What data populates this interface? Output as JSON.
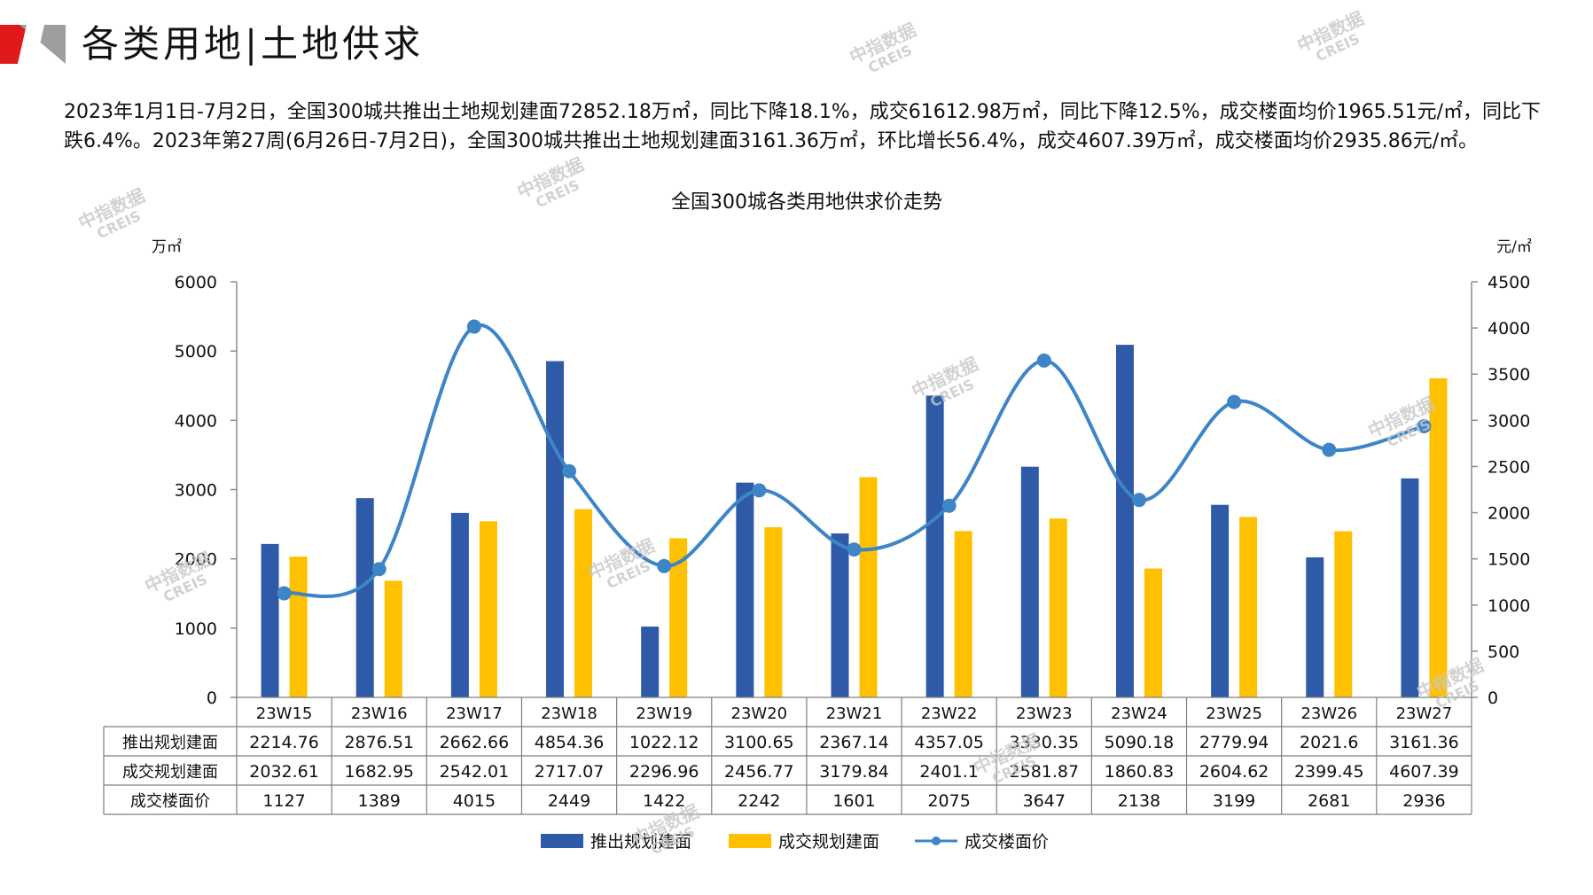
{
  "header": {
    "title": "各类用地|土地供求"
  },
  "summary": {
    "text": "2023年1月1日-7月2日，全国300城共推出土地规划建面72852.18万㎡，同比下降18.1%，成交61612.98万㎡，同比下降12.5%，成交楼面均价1965.51元/㎡，同比下跌6.4%。2023年第27周(6月26日-7月2日)，全国300城共推出土地规划建面3161.36万㎡，环比增长56.4%，成交4607.39万㎡，成交楼面均价2935.86元/㎡。"
  },
  "watermark": {
    "cn": "中指数据",
    "en": "CREIS"
  },
  "colors": {
    "supply": "#2e5aa8",
    "deal": "#ffc000",
    "price": "#3d85c6",
    "brand_red": "#e0191a",
    "brand_gray": "#9e9e9e"
  },
  "chart_data": {
    "type": "bar",
    "title": "全国300城各类用地供求价走势",
    "y_left_unit": "万㎡",
    "y_right_unit": "元/㎡",
    "y_left_lim": [
      0,
      6000
    ],
    "y_left_ticks": [
      "0",
      "1000",
      "2000",
      "3000",
      "4000",
      "5000",
      "6000"
    ],
    "y_right_lim": [
      0,
      4500
    ],
    "y_right_ticks": [
      "0",
      "500",
      "1000",
      "1500",
      "2000",
      "2500",
      "3000",
      "3500",
      "4000",
      "4500"
    ],
    "categories": [
      "23W15",
      "23W16",
      "23W17",
      "23W18",
      "23W19",
      "23W20",
      "23W21",
      "23W22",
      "23W23",
      "23W24",
      "23W25",
      "23W26",
      "23W27"
    ],
    "series": [
      {
        "name": "推出规划建面",
        "kind": "bar",
        "axis": "left",
        "values": [
          2214.76,
          2876.51,
          2662.66,
          4854.36,
          1022.12,
          3100.65,
          2367.14,
          4357.05,
          3330.35,
          5090.18,
          2779.94,
          2021.6,
          3161.36
        ],
        "labels": [
          "2214.76",
          "2876.51",
          "2662.66",
          "4854.36",
          "1022.12",
          "3100.65",
          "2367.14",
          "4357.05",
          "3330.35",
          "5090.18",
          "2779.94",
          "2021.6",
          "3161.36"
        ]
      },
      {
        "name": "成交规划建面",
        "kind": "bar",
        "axis": "left",
        "values": [
          2032.61,
          1682.95,
          2542.01,
          2717.07,
          2296.96,
          2456.77,
          3179.84,
          2401.1,
          2581.87,
          1860.83,
          2604.62,
          2399.45,
          4607.39
        ],
        "labels": [
          "2032.61",
          "1682.95",
          "2542.01",
          "2717.07",
          "2296.96",
          "2456.77",
          "3179.84",
          "2401.1",
          "2581.87",
          "1860.83",
          "2604.62",
          "2399.45",
          "4607.39"
        ]
      },
      {
        "name": "成交楼面价",
        "kind": "line",
        "axis": "right",
        "values": [
          1127,
          1389,
          4015,
          2449,
          1422,
          2242,
          1601,
          2075,
          3647,
          2138,
          3199,
          2681,
          2936
        ],
        "labels": [
          "1127",
          "1389",
          "4015",
          "2449",
          "1422",
          "2242",
          "1601",
          "2075",
          "3647",
          "2138",
          "3199",
          "2681",
          "2936"
        ]
      }
    ],
    "legend_position": "bottom",
    "grid": false
  }
}
